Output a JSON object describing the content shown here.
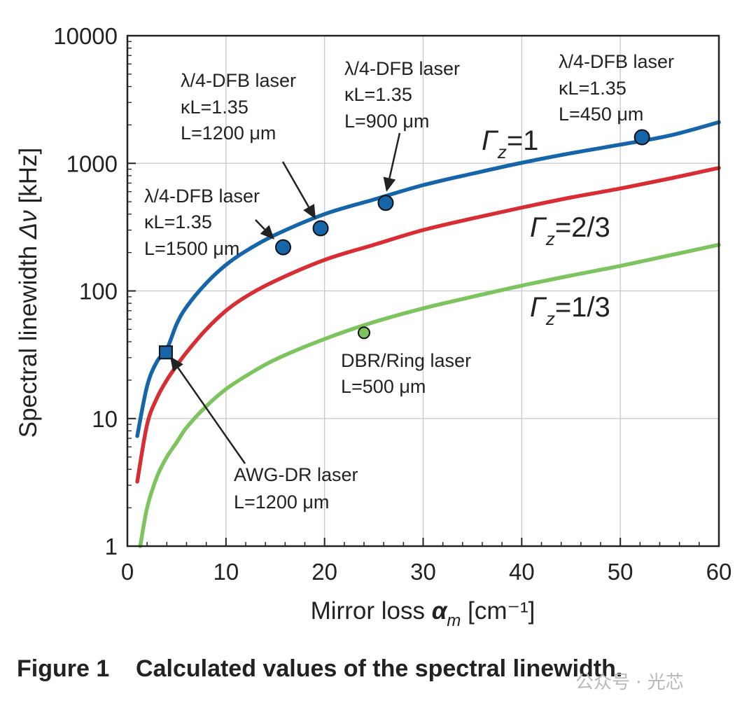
{
  "chart_data": {
    "type": "line",
    "title": "",
    "xlabel": "Mirror loss",
    "xlabel_symbol": "α",
    "xlabel_sub": "m",
    "xlabel_unit": "[cm⁻¹]",
    "ylabel": "Spectral linewidth",
    "ylabel_symbol": "Δν",
    "ylabel_unit": "[kHz]",
    "xlim": [
      0,
      60
    ],
    "ylim": [
      1,
      10000
    ],
    "yscale": "log",
    "grid": true,
    "x_ticks": [
      "0",
      "10",
      "20",
      "30",
      "40",
      "50",
      "60"
    ],
    "y_ticks": [
      "1",
      "10",
      "100",
      "1000",
      "10000"
    ],
    "series": [
      {
        "name": "Γz=1",
        "label_symbol": "Γ",
        "label_sub": "z",
        "label_value": "=1",
        "color": "#1565a8",
        "x": [
          1,
          2,
          3,
          4,
          5,
          6,
          8,
          10,
          12,
          15,
          20,
          25,
          30,
          35,
          40,
          45,
          50,
          55,
          60
        ],
        "y": [
          7.3,
          18,
          28,
          35,
          55,
          75,
          115,
          160,
          205,
          275,
          400,
          520,
          675,
          830,
          1010,
          1200,
          1400,
          1650,
          2100
        ]
      },
      {
        "name": "Γz=2/3",
        "label_symbol": "Γ",
        "label_sub": "z",
        "label_value": "=2/3",
        "color": "#d62e34",
        "x": [
          1,
          2,
          3,
          4,
          5,
          6,
          8,
          10,
          12,
          15,
          20,
          25,
          30,
          35,
          40,
          45,
          50,
          55,
          60
        ],
        "y": [
          3.2,
          9,
          14.5,
          20,
          26,
          33,
          50,
          70,
          90,
          120,
          175,
          230,
          300,
          370,
          450,
          540,
          635,
          760,
          920
        ]
      },
      {
        "name": "Γz=1/3",
        "label_symbol": "Γ",
        "label_sub": "z",
        "label_value": "=1/3",
        "color": "#7dc460",
        "x": [
          1.3,
          2,
          3,
          4,
          5,
          6,
          8,
          10,
          12,
          15,
          20,
          25,
          30,
          35,
          40,
          45,
          50,
          55,
          60
        ],
        "y": [
          1,
          2,
          3.5,
          5,
          6.5,
          8.5,
          12.5,
          17,
          21.5,
          29,
          42,
          57,
          73,
          90,
          110,
          132,
          157,
          190,
          230
        ]
      }
    ],
    "points": [
      {
        "x": 15.8,
        "y": 220,
        "marker": "circle",
        "color": "#1565a8"
      },
      {
        "x": 19.6,
        "y": 310,
        "marker": "circle",
        "color": "#1565a8"
      },
      {
        "x": 26.2,
        "y": 490,
        "marker": "circle",
        "color": "#1565a8"
      },
      {
        "x": 52.2,
        "y": 1600,
        "marker": "circle",
        "color": "#1565a8"
      },
      {
        "x": 3.9,
        "y": 33,
        "marker": "square",
        "color": "#1565a8"
      },
      {
        "x": 24.0,
        "y": 47,
        "marker": "circle",
        "color": "#7dc460"
      }
    ],
    "annotations": [
      {
        "lines": [
          "λ/4-DFB laser",
          "κL=1.35",
          "L=1500 μm"
        ]
      },
      {
        "lines": [
          "λ/4-DFB laser",
          "κL=1.35",
          "L=1200 μm"
        ]
      },
      {
        "lines": [
          "λ/4-DFB laser",
          "κL=1.35",
          "L=900 μm"
        ]
      },
      {
        "lines": [
          "λ/4-DFB laser",
          "κL=1.35",
          "L=450 μm"
        ]
      },
      {
        "lines": [
          "AWG-DR laser",
          "L=1200 μm"
        ]
      },
      {
        "lines": [
          "DBR/Ring laser",
          "L=500 μm"
        ]
      }
    ]
  },
  "caption": {
    "label": "Figure 1",
    "text": "Calculated values of the spectral linewidth."
  },
  "watermark": "公众号 · 光芯"
}
